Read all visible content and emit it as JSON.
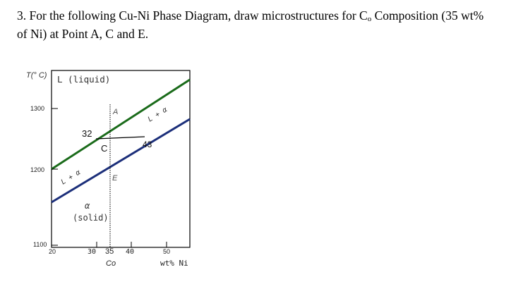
{
  "question": {
    "number": "3.",
    "text_before_sub": "For the following Cu-Ni Phase Diagram, draw microstructures for C",
    "subscript": "o",
    "text_after_sub": " Composition (35 wt%",
    "line2": "of Ni) at Point A, C and E."
  },
  "diagram": {
    "y_axis_label": "T(° C)",
    "x_axis_label": "wt% Ni",
    "x_ticks": [
      "20",
      "30",
      "35",
      "40",
      "50"
    ],
    "y_ticks": [
      "1300",
      "1200",
      "1100"
    ],
    "composition_label": "Co",
    "region_liquid": "L (liquid)",
    "region_two_phase_right": "L + α",
    "region_two_phase_left": "L + α",
    "region_alpha": "α",
    "region_solid": "(solid)",
    "tie_line_left": "32",
    "tie_line_right": "43",
    "point_a": "A",
    "point_c": "C",
    "point_e": "E",
    "colors": {
      "liquidus": "#1a6b1a",
      "solidus": "#1c2f7a",
      "frame": "#000000"
    }
  }
}
